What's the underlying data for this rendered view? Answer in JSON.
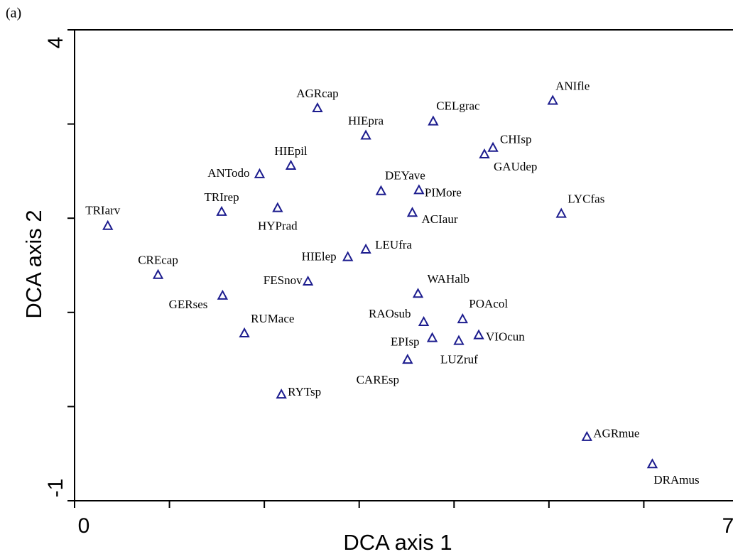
{
  "chart_data": {
    "type": "scatter",
    "panel_label": "(a)",
    "x_label": "DCA axis 1",
    "y_label": "DCA axis 2",
    "xlim": [
      0,
      7
    ],
    "ylim": [
      -1,
      4
    ],
    "xticks": [
      0,
      7
    ],
    "yticks": [
      -1,
      4
    ],
    "xminorticks": [
      1,
      2,
      3,
      4,
      5,
      6
    ],
    "yminorticks": [
      0,
      1,
      2,
      3
    ],
    "series": [
      {
        "color": "#1c1c8e",
        "labels": [
          "TRIarv",
          "CREcap",
          "GERses",
          "TRIrep",
          "ANTodo",
          "HIEpil",
          "HYPrad",
          "AGRcap",
          "HIEpra",
          "CELgrac",
          "ANIfle",
          "CHIsp",
          "GAUdep",
          "DEYave",
          "PIMore",
          "ACIaur",
          "LYCfas",
          "LEUfra",
          "HIElep",
          "FESnov",
          "WAHalb",
          "POAcol",
          "RAOsub",
          "EPIsp",
          "LUZruf",
          "VIOcun",
          "RUMace",
          "CAREsp",
          "RYTsp",
          "AGRmue",
          "DRAmus"
        ],
        "x": [
          0.35,
          0.88,
          1.56,
          1.55,
          1.95,
          2.28,
          2.14,
          2.56,
          3.07,
          3.78,
          5.04,
          4.41,
          4.32,
          3.23,
          3.63,
          3.56,
          5.13,
          3.07,
          2.88,
          2.46,
          3.62,
          4.09,
          3.68,
          3.77,
          4.05,
          4.26,
          1.79,
          3.51,
          2.18,
          5.4,
          6.09
        ],
        "values": [
          1.92,
          1.4,
          1.18,
          2.07,
          2.47,
          2.56,
          2.11,
          3.17,
          2.88,
          3.03,
          3.25,
          2.75,
          2.68,
          2.29,
          2.3,
          2.06,
          2.05,
          1.67,
          1.59,
          1.33,
          1.2,
          0.93,
          0.9,
          0.73,
          0.7,
          0.76,
          0.78,
          0.5,
          0.13,
          -0.32,
          -0.61
        ]
      }
    ]
  }
}
